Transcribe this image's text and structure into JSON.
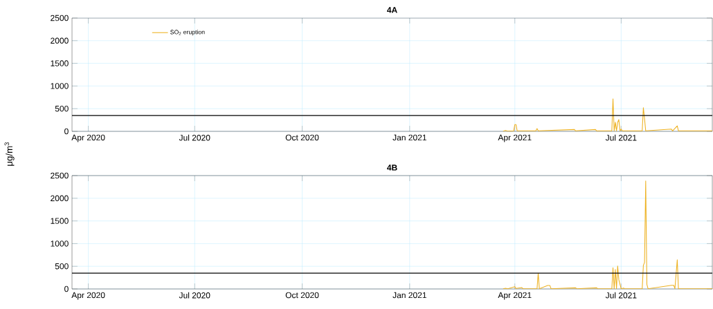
{
  "chart_data": [
    {
      "type": "line",
      "title": "4A",
      "ylabel": "μg/m$^{3}$",
      "xlim": [
        "2020-03-18",
        "2021-09-17"
      ],
      "ylim": [
        0,
        2500
      ],
      "xticks": [
        {
          "value": "2020-04-01",
          "label": "Apr 2020"
        },
        {
          "value": "2020-07-01",
          "label": "Jul 2020"
        },
        {
          "value": "2020-10-01",
          "label": "Oct 2020"
        },
        {
          "value": "2021-01-01",
          "label": "Jan 2021"
        },
        {
          "value": "2021-04-01",
          "label": "Apr 2021"
        },
        {
          "value": "2021-07-01",
          "label": "Jul 2021"
        }
      ],
      "yticks": [
        0,
        500,
        1000,
        1500,
        2000,
        2500
      ],
      "grid": true,
      "legend": "top left",
      "ref_lines": [
        {
          "axis": "y",
          "value": 350,
          "color": "#000000"
        }
      ],
      "series": [
        {
          "name": "SO$_{2}$ eruption",
          "color": "#edb120",
          "x": [
            "2021-03-22",
            "2021-03-24",
            "2021-03-26",
            "2021-03-31",
            "2021-04-01",
            "2021-04-02",
            "2021-04-03",
            "2021-04-19",
            "2021-04-20",
            "2021-04-21",
            "2021-05-22",
            "2021-05-23",
            "2021-06-09",
            "2021-06-10",
            "2021-06-23",
            "2021-06-24",
            "2021-06-25",
            "2021-06-26",
            "2021-06-27",
            "2021-06-28",
            "2021-06-29",
            "2021-06-30",
            "2021-07-01",
            "2021-07-02",
            "2021-07-19",
            "2021-07-20",
            "2021-07-21",
            "2021-07-22",
            "2021-08-13",
            "2021-08-14",
            "2021-08-18",
            "2021-08-19",
            "2021-09-17"
          ],
          "values": [
            5,
            20,
            5,
            10,
            150,
            150,
            10,
            10,
            60,
            10,
            40,
            10,
            40,
            10,
            10,
            715,
            10,
            200,
            10,
            200,
            260,
            10,
            50,
            10,
            10,
            520,
            275,
            10,
            50,
            10,
            120,
            10,
            10
          ]
        }
      ]
    },
    {
      "type": "line",
      "title": "4B",
      "xlim": [
        "2020-03-18",
        "2021-09-17"
      ],
      "ylim": [
        0,
        2500
      ],
      "xticks": [
        {
          "value": "2020-04-01",
          "label": "Apr 2020"
        },
        {
          "value": "2020-07-01",
          "label": "Jul 2020"
        },
        {
          "value": "2020-10-01",
          "label": "Oct 2020"
        },
        {
          "value": "2021-01-01",
          "label": "Jan 2021"
        },
        {
          "value": "2021-04-01",
          "label": "Apr 2021"
        },
        {
          "value": "2021-07-01",
          "label": "Jul 2021"
        }
      ],
      "yticks": [
        0,
        500,
        1000,
        1500,
        2000,
        2500
      ],
      "grid": true,
      "ref_lines": [
        {
          "axis": "y",
          "value": 350,
          "color": "#000000"
        }
      ],
      "series": [
        {
          "color": "#edb120",
          "x": [
            "2021-03-22",
            "2021-03-24",
            "2021-03-26",
            "2021-04-01",
            "2021-04-02",
            "2021-04-07",
            "2021-04-08",
            "2021-04-20",
            "2021-04-21",
            "2021-04-22",
            "2021-04-29",
            "2021-05-01",
            "2021-05-02",
            "2021-05-23",
            "2021-05-24",
            "2021-06-10",
            "2021-06-11",
            "2021-06-23",
            "2021-06-24",
            "2021-06-25",
            "2021-06-26",
            "2021-06-27",
            "2021-06-28",
            "2021-06-29",
            "2021-06-30",
            "2021-07-01",
            "2021-07-03",
            "2021-07-04",
            "2021-07-19",
            "2021-07-20",
            "2021-07-21",
            "2021-07-22",
            "2021-07-23",
            "2021-07-24",
            "2021-08-13",
            "2021-08-15",
            "2021-08-16",
            "2021-08-18",
            "2021-08-19",
            "2021-09-17"
          ],
          "values": [
            5,
            15,
            5,
            50,
            10,
            30,
            5,
            5,
            345,
            5,
            75,
            75,
            5,
            25,
            5,
            25,
            5,
            5,
            470,
            5,
            430,
            5,
            505,
            200,
            100,
            5,
            20,
            5,
            5,
            520,
            585,
            2380,
            100,
            5,
            80,
            80,
            5,
            645,
            5,
            5
          ]
        }
      ]
    }
  ]
}
